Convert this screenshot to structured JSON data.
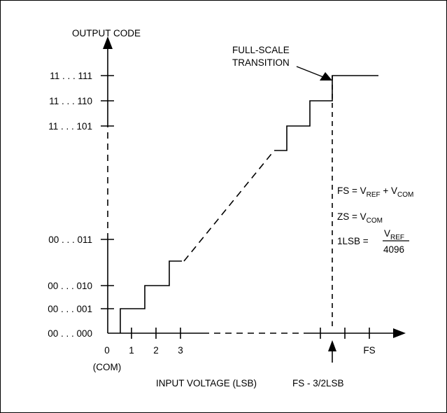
{
  "y_axis": {
    "title": "OUTPUT CODE",
    "codes": [
      "11 . . . 111",
      "11 . . . 110",
      "11 . . . 101",
      "00 . . . 011",
      "00 . . . 010",
      "00 . . . 001",
      "00 . . . 000"
    ]
  },
  "x_axis": {
    "title": "INPUT VOLTAGE (LSB)",
    "tick_labels": [
      "0",
      "1",
      "2",
      "3",
      "FS"
    ],
    "origin_note": "(COM)"
  },
  "annotations": {
    "full_scale_line1": "FULL-SCALE",
    "full_scale_line2": "TRANSITION",
    "fs_minus": "FS - 3/2LSB"
  },
  "equations": {
    "fs_prefix": "FS = V",
    "fs_sub1": "REF",
    "fs_mid": " + V",
    "fs_sub2": "COM",
    "zs_prefix": "ZS = V",
    "zs_sub": "COM",
    "lsb_prefix": "1LSB = ",
    "lsb_num_v": "V",
    "lsb_num_sub": "REF",
    "lsb_den": "4096"
  }
}
